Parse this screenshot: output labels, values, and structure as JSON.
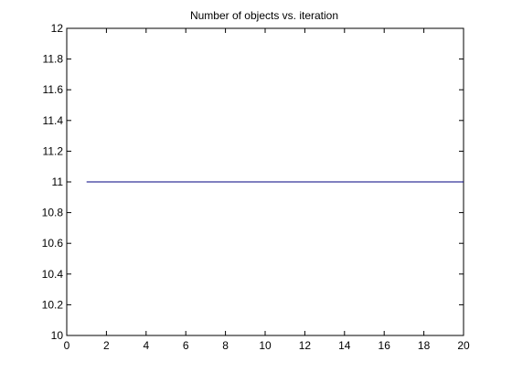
{
  "chart_data": {
    "type": "line",
    "title": "Number of objects vs. iteration",
    "xlabel": "",
    "ylabel": "",
    "xlim": [
      0,
      20
    ],
    "ylim": [
      10,
      12
    ],
    "xticks": [
      0,
      2,
      4,
      6,
      8,
      10,
      12,
      14,
      16,
      18,
      20
    ],
    "xtick_labels": [
      "0",
      "2",
      "4",
      "6",
      "8",
      "10",
      "12",
      "14",
      "16",
      "18",
      "20"
    ],
    "yticks": [
      10,
      10.2,
      10.4,
      10.6,
      10.8,
      11,
      11.2,
      11.4,
      11.6,
      11.8,
      12
    ],
    "ytick_labels": [
      "10",
      "10.2",
      "10.4",
      "10.6",
      "10.8",
      "11",
      "11.2",
      "11.4",
      "11.6",
      "11.8",
      "12"
    ],
    "grid": false,
    "legend": "none",
    "series": [
      {
        "x": [
          1,
          2,
          3,
          4,
          5,
          6,
          7,
          8,
          9,
          10,
          11,
          12,
          13,
          14,
          15,
          16,
          17,
          18,
          19,
          20
        ],
        "y": [
          11,
          11,
          11,
          11,
          11,
          11,
          11,
          11,
          11,
          11,
          11,
          11,
          11,
          11,
          11,
          11,
          11,
          11,
          11,
          11
        ],
        "color": "#00007f"
      }
    ]
  }
}
